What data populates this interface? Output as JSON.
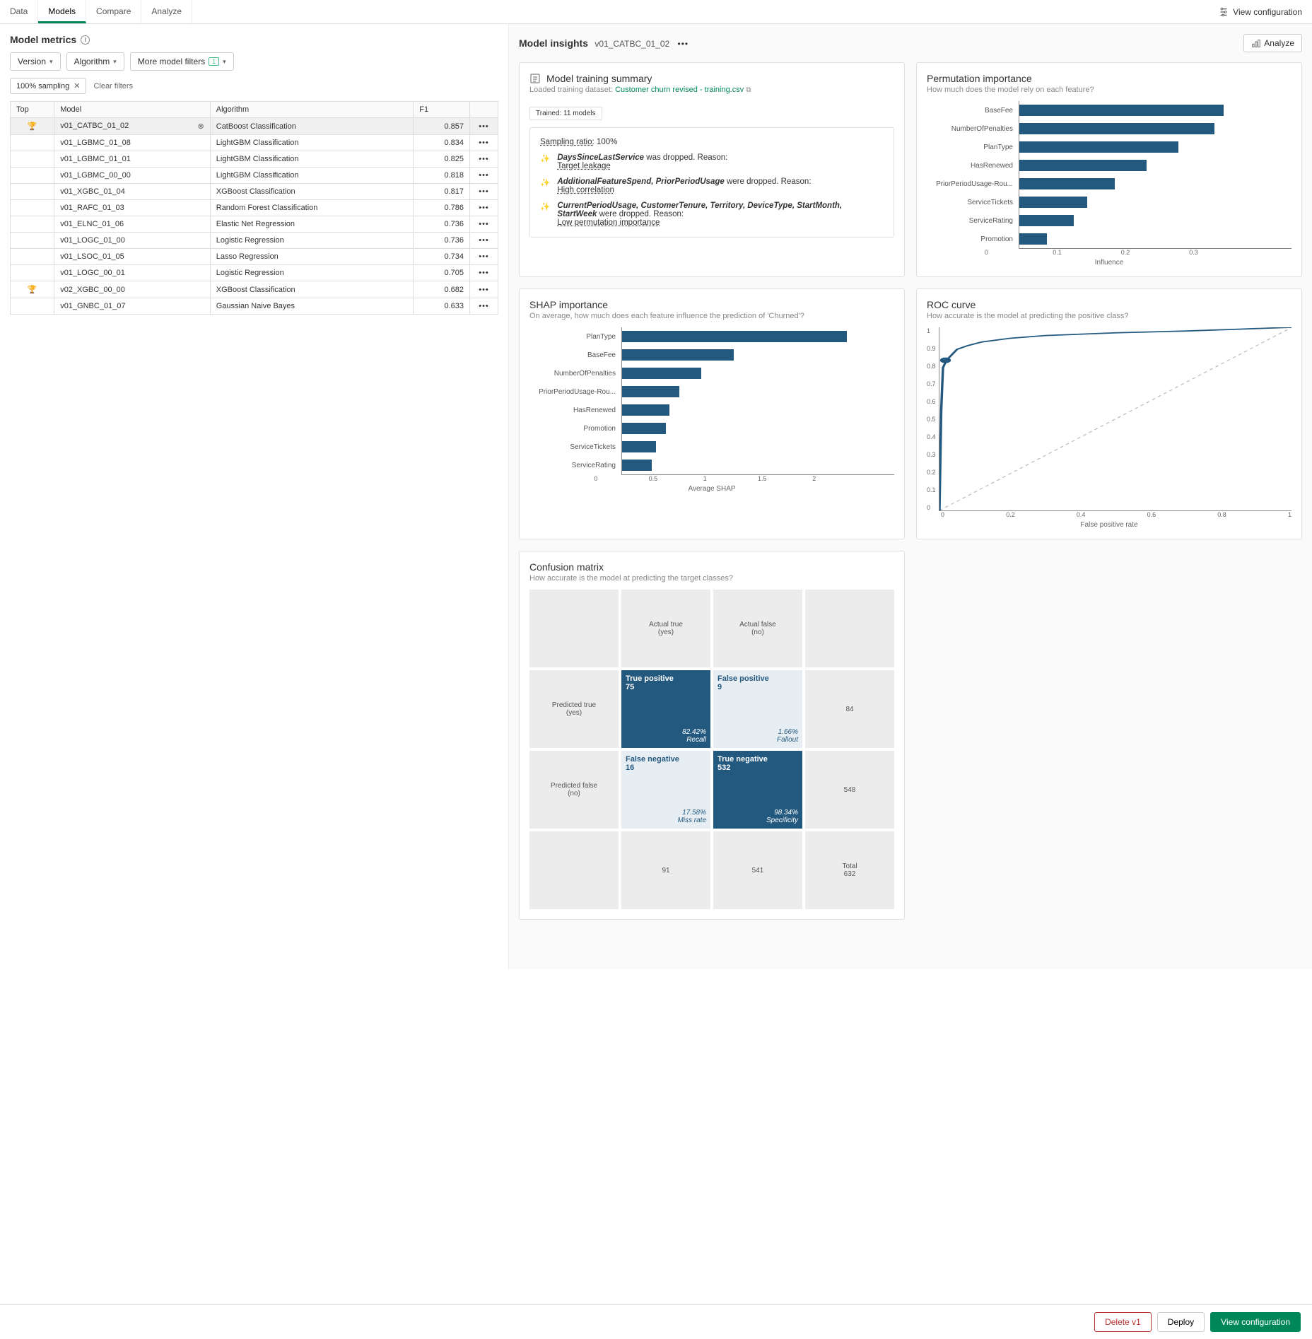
{
  "tabs": [
    "Data",
    "Models",
    "Compare",
    "Analyze"
  ],
  "active_tab": "Models",
  "view_configuration": "View configuration",
  "left": {
    "title": "Model metrics",
    "filters": {
      "version": "Version",
      "algorithm": "Algorithm",
      "more": "More model filters",
      "more_count": "1"
    },
    "chip": "100% sampling",
    "clear": "Clear filters",
    "columns": [
      "Top",
      "Model",
      "Algorithm",
      "F1",
      ""
    ],
    "rows": [
      {
        "top": "🏆",
        "model": "v01_CATBC_01_02",
        "algo": "CatBoost Classification",
        "f1": "0.857",
        "selected": true,
        "pin": true
      },
      {
        "top": "",
        "model": "v01_LGBMC_01_08",
        "algo": "LightGBM Classification",
        "f1": "0.834"
      },
      {
        "top": "",
        "model": "v01_LGBMC_01_01",
        "algo": "LightGBM Classification",
        "f1": "0.825"
      },
      {
        "top": "",
        "model": "v01_LGBMC_00_00",
        "algo": "LightGBM Classification",
        "f1": "0.818"
      },
      {
        "top": "",
        "model": "v01_XGBC_01_04",
        "algo": "XGBoost Classification",
        "f1": "0.817"
      },
      {
        "top": "",
        "model": "v01_RAFC_01_03",
        "algo": "Random Forest Classification",
        "f1": "0.786"
      },
      {
        "top": "",
        "model": "v01_ELNC_01_06",
        "algo": "Elastic Net Regression",
        "f1": "0.736"
      },
      {
        "top": "",
        "model": "v01_LOGC_01_00",
        "algo": "Logistic Regression",
        "f1": "0.736"
      },
      {
        "top": "",
        "model": "v01_LSOC_01_05",
        "algo": "Lasso Regression",
        "f1": "0.734"
      },
      {
        "top": "",
        "model": "v01_LOGC_00_01",
        "algo": "Logistic Regression",
        "f1": "0.705"
      },
      {
        "top": "🏆",
        "model": "v02_XGBC_00_00",
        "algo": "XGBoost Classification",
        "f1": "0.682"
      },
      {
        "top": "",
        "model": "v01_GNBC_01_07",
        "algo": "Gaussian Naive Bayes",
        "f1": "0.633"
      }
    ]
  },
  "insights": {
    "title": "Model insights",
    "model": "v01_CATBC_01_02",
    "analyze": "Analyze"
  },
  "training": {
    "title": "Model training summary",
    "loaded_label": "Loaded training dataset:",
    "dataset": "Customer churn revised - training.csv",
    "trained": "Trained: 11 models",
    "sampling_label": "Sampling ratio:",
    "sampling_value": "100%",
    "drops": [
      {
        "bold": "DaysSinceLastService",
        "rest": " was dropped. Reason: ",
        "reason": "Target leakage"
      },
      {
        "bold": "AdditionalFeatureSpend, PriorPeriodUsage",
        "rest": " were dropped. Reason:",
        "reason": "High correlation"
      },
      {
        "bold": "CurrentPeriodUsage, CustomerTenure, Territory, DeviceType, StartMonth, StartWeek",
        "rest": " were dropped. Reason:",
        "reason": "Low permutation importance"
      }
    ]
  },
  "perm": {
    "title": "Permutation importance",
    "sub": "How much does the model rely on each feature?",
    "xlabel": "Influence",
    "xmax": 0.3,
    "xticks": [
      "0",
      "0.1",
      "0.2",
      "0.3"
    ],
    "bar_color": "#24597f",
    "items": [
      {
        "label": "BaseFee",
        "value": 0.225
      },
      {
        "label": "NumberOfPenalties",
        "value": 0.215
      },
      {
        "label": "PlanType",
        "value": 0.175
      },
      {
        "label": "HasRenewed",
        "value": 0.14
      },
      {
        "label": "PriorPeriodUsage-Rou...",
        "value": 0.105
      },
      {
        "label": "ServiceTickets",
        "value": 0.075
      },
      {
        "label": "ServiceRating",
        "value": 0.06
      },
      {
        "label": "Promotion",
        "value": 0.03
      }
    ]
  },
  "shap": {
    "title": "SHAP importance",
    "sub": "On average, how much does each feature influence the prediction of 'Churned'?",
    "xlabel": "Average SHAP",
    "xmax": 2,
    "xticks": [
      "0",
      "0.5",
      "1",
      "1.5",
      "2"
    ],
    "bar_color": "#24597f",
    "items": [
      {
        "label": "PlanType",
        "value": 1.65
      },
      {
        "label": "BaseFee",
        "value": 0.82
      },
      {
        "label": "NumberOfPenalties",
        "value": 0.58
      },
      {
        "label": "PriorPeriodUsage-Rou...",
        "value": 0.42
      },
      {
        "label": "HasRenewed",
        "value": 0.35
      },
      {
        "label": "Promotion",
        "value": 0.32
      },
      {
        "label": "ServiceTickets",
        "value": 0.25
      },
      {
        "label": "ServiceRating",
        "value": 0.22
      }
    ]
  },
  "roc": {
    "title": "ROC curve",
    "sub": "How accurate is the model at predicting the positive class?",
    "xlabel": "False positive rate",
    "xticks": [
      "0",
      "0.2",
      "0.4",
      "0.6",
      "0.8",
      "1"
    ],
    "yticks": [
      "0",
      "0.1",
      "0.2",
      "0.3",
      "0.4",
      "0.5",
      "0.6",
      "0.7",
      "0.8",
      "0.9",
      "1"
    ],
    "line_color": "#24597f",
    "diag_color": "#bbbbbb",
    "points": [
      [
        0,
        0
      ],
      [
        0.005,
        0.55
      ],
      [
        0.01,
        0.78
      ],
      [
        0.015,
        0.8
      ],
      [
        0.02,
        0.82
      ],
      [
        0.03,
        0.84
      ],
      [
        0.05,
        0.88
      ],
      [
        0.08,
        0.9
      ],
      [
        0.12,
        0.92
      ],
      [
        0.2,
        0.94
      ],
      [
        0.3,
        0.955
      ],
      [
        0.5,
        0.97
      ],
      [
        0.7,
        0.98
      ],
      [
        0.85,
        0.99
      ],
      [
        1,
        1
      ]
    ],
    "marker": [
      0.017,
      0.82
    ]
  },
  "cm": {
    "title": "Confusion matrix",
    "sub": "How accurate is the model at predicting the target classes?",
    "actual_true": "Actual true\n(yes)",
    "actual_false": "Actual false\n(no)",
    "pred_true": "Predicted true\n(yes)",
    "pred_false": "Predicted false\n(no)",
    "tp": {
      "label": "True positive",
      "n": "75",
      "pct": "82.42%",
      "metric": "Recall"
    },
    "fp": {
      "label": "False positive",
      "n": "9",
      "pct": "1.66%",
      "metric": "Fallout"
    },
    "fn": {
      "label": "False negative",
      "n": "16",
      "pct": "17.58%",
      "metric": "Miss rate"
    },
    "tn": {
      "label": "True negative",
      "n": "532",
      "pct": "98.34%",
      "metric": "Specificity"
    },
    "row_true_total": "84",
    "row_false_total": "548",
    "col_true_total": "91",
    "col_false_total": "541",
    "total_label": "Total",
    "total": "632"
  },
  "bottom": {
    "delete": "Delete v1",
    "deploy": "Deploy",
    "view": "View configuration"
  }
}
